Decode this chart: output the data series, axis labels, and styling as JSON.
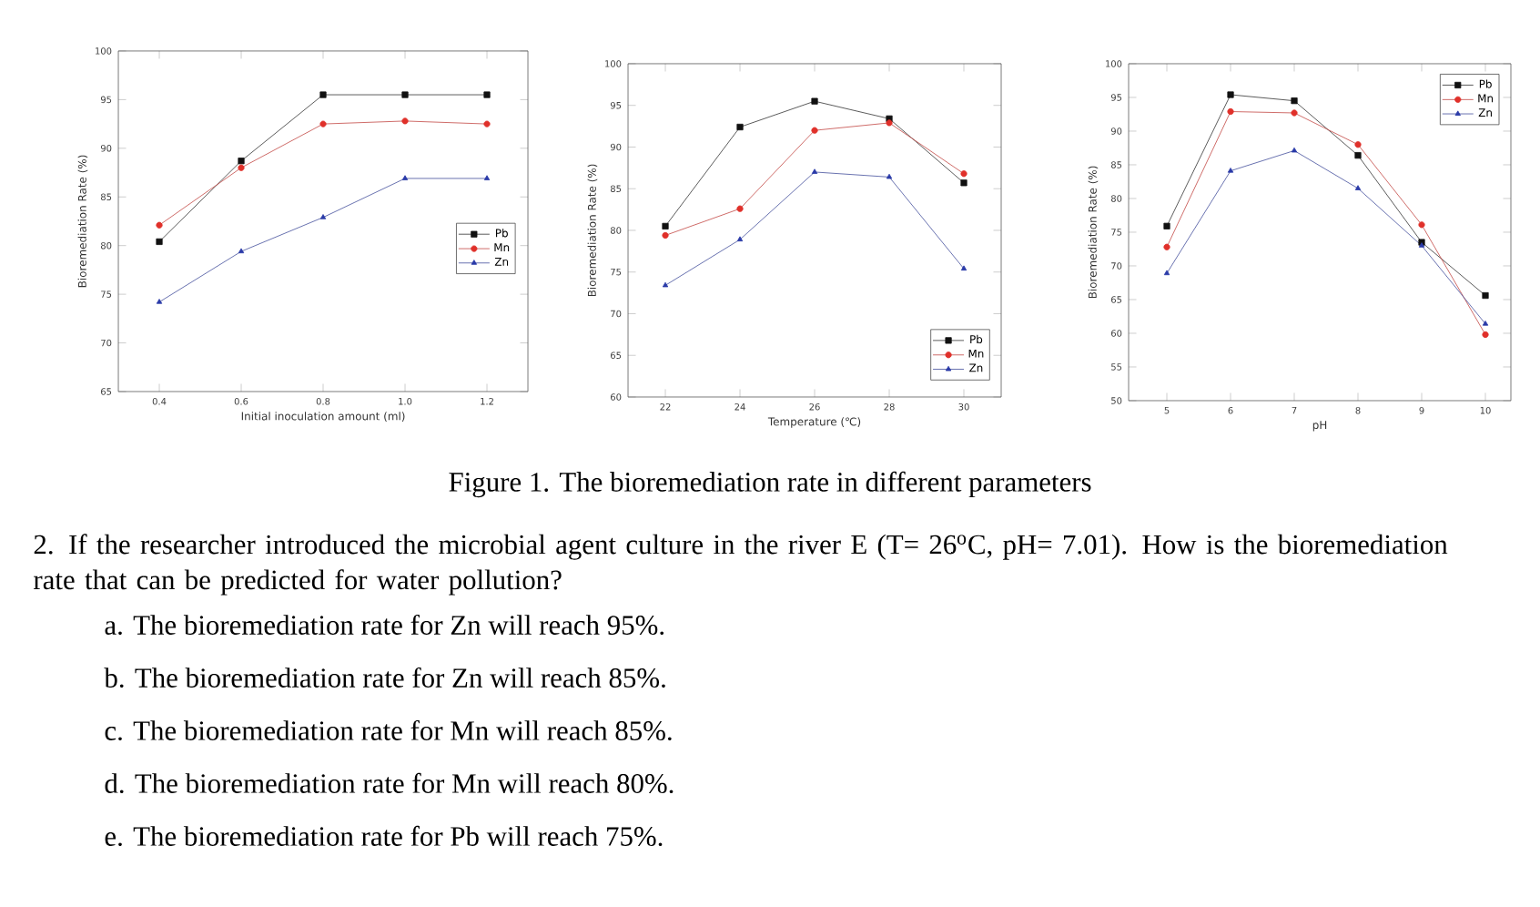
{
  "chart_data": [
    {
      "type": "line",
      "xlabel": "Initial inoculation amount (ml)",
      "ylabel": "Bioremediation Rate (%)",
      "x": [
        0.4,
        0.6,
        0.8,
        1.0,
        1.2
      ],
      "xlim": [
        0.3,
        1.3
      ],
      "ylim": [
        65,
        100
      ],
      "xticks": [
        0.4,
        0.6,
        0.8,
        {
          "value": 1.0,
          "label": "1.0"
        },
        1.2
      ],
      "yticks": [
        65,
        70,
        75,
        80,
        85,
        90,
        95,
        100
      ],
      "legend": "right",
      "series": [
        {
          "name": "Pb",
          "color": "#111111",
          "marker": "square",
          "values": [
            80.4,
            88.7,
            95.5,
            95.5,
            95.5
          ]
        },
        {
          "name": "Mn",
          "color": "#e0302a",
          "marker": "circle",
          "values": [
            82.1,
            88.0,
            92.5,
            92.8,
            92.5
          ]
        },
        {
          "name": "Zn",
          "color": "#2a3aa8",
          "marker": "triangle",
          "values": [
            74.2,
            79.4,
            82.9,
            86.9,
            86.9
          ]
        }
      ]
    },
    {
      "type": "line",
      "xlabel": "Temperature (℃)",
      "ylabel": "Bioremediation Rate (%)",
      "x": [
        22,
        24,
        26,
        28,
        30
      ],
      "xlim": [
        21,
        31
      ],
      "ylim": [
        60,
        100
      ],
      "xticks": [
        22,
        24,
        26,
        28,
        30
      ],
      "yticks": [
        60,
        65,
        70,
        75,
        80,
        85,
        90,
        95,
        100
      ],
      "legend": "bottom right",
      "series": [
        {
          "name": "Pb",
          "color": "#111111",
          "marker": "square",
          "values": [
            80.5,
            92.4,
            95.5,
            93.4,
            85.7
          ]
        },
        {
          "name": "Mn",
          "color": "#e0302a",
          "marker": "circle",
          "values": [
            79.4,
            82.6,
            92.0,
            92.9,
            86.8
          ]
        },
        {
          "name": "Zn",
          "color": "#2a3aa8",
          "marker": "triangle",
          "values": [
            73.4,
            78.9,
            87.0,
            86.4,
            75.4
          ]
        }
      ]
    },
    {
      "type": "line",
      "xlabel": "pH",
      "ylabel": "Bioremediation Rate (%)",
      "x": [
        5,
        6,
        7,
        8,
        9,
        10
      ],
      "xlim": [
        4.4,
        10.4
      ],
      "ylim": [
        50,
        100
      ],
      "xticks": [
        5,
        6,
        7,
        8,
        9,
        10
      ],
      "yticks": [
        50,
        55,
        60,
        65,
        70,
        75,
        80,
        85,
        90,
        95,
        100
      ],
      "legend": "top right",
      "series": [
        {
          "name": "Pb",
          "color": "#111111",
          "marker": "square",
          "values": [
            75.9,
            95.4,
            94.5,
            86.4,
            73.5,
            65.6
          ]
        },
        {
          "name": "Mn",
          "color": "#e0302a",
          "marker": "circle",
          "values": [
            72.8,
            92.9,
            92.7,
            88.0,
            76.1,
            59.8
          ]
        },
        {
          "name": "Zn",
          "color": "#2a3aa8",
          "marker": "triangle",
          "values": [
            68.9,
            84.1,
            87.1,
            81.5,
            73.0,
            61.4
          ]
        }
      ]
    },
    {
      "type": "other",
      "annotations": [
        "Figure 1. The bioremediation rate in different parameters",
        "2. If the researcher introduced the microbial agent culture in the river E (T= 26$^{o}$C, pH= 7.01). How is the bioremediation rate that can be predicted for water pollution?",
        "a.  The bioremediation rate for Zn will reach 95%.",
        "b.  The bioremediation rate for Zn will reach 85%.",
        "c.  The bioremediation rate for Mn will reach 85%.",
        "d.  The bioremediation rate for Mn will reach 80%.",
        "e.  The bioremediation rate for Pb will reach 75%."
      ]
    }
  ]
}
